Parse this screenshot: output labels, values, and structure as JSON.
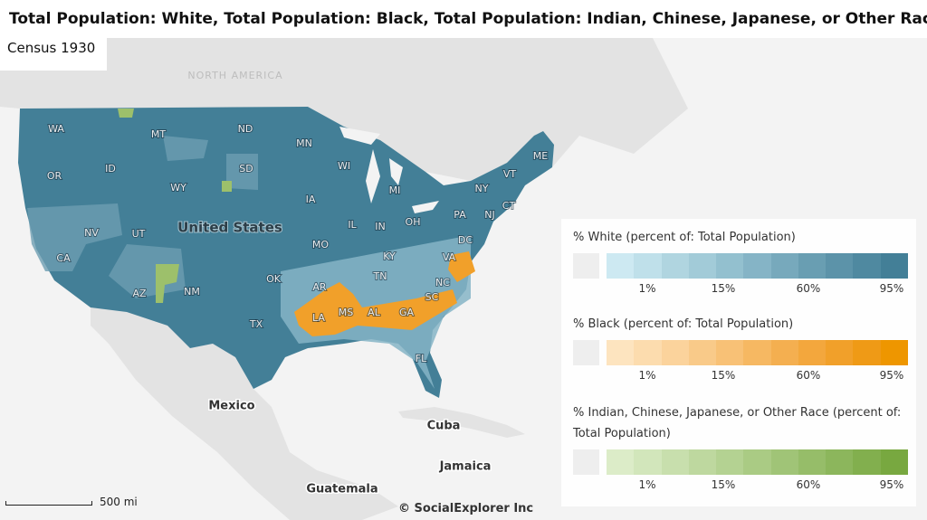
{
  "header": {
    "title": "Total Population: White, Total Population: Black, Total Population: Indian, Chinese, Japanese, or Other Race",
    "subtitle": "Census 1930"
  },
  "map": {
    "region_labels": [
      "NORTH AMERICA",
      "United States",
      "Mexico",
      "Cuba",
      "Jamaica",
      "Guatemala"
    ],
    "state_labels": [
      "WA",
      "MT",
      "ND",
      "MN",
      "OR",
      "ID",
      "SD",
      "WI",
      "MI",
      "WY",
      "IA",
      "NV",
      "UT",
      "IL",
      "IN",
      "OH",
      "PA",
      "NY",
      "VT",
      "ME",
      "NJ",
      "CT",
      "DC",
      "MO",
      "KY",
      "VA",
      "CA",
      "AZ",
      "NM",
      "OK",
      "AR",
      "TN",
      "NC",
      "SC",
      "MS",
      "AL",
      "GA",
      "LA",
      "TX",
      "FL"
    ]
  },
  "legends": [
    {
      "title": "% White (percent of: Total Population)",
      "no_data_color": "#eeeeee",
      "colors": [
        "#cde9f2",
        "#bfe0ea",
        "#b0d5e0",
        "#a2cbd8",
        "#93c0cf",
        "#85b4c6",
        "#77a9bc",
        "#699eb2",
        "#5c93a9",
        "#4f89a0",
        "#437f97"
      ],
      "tick_labels": [
        "1%",
        "15%",
        "60%",
        "95%"
      ]
    },
    {
      "title": "% Black (percent of: Total Population)",
      "no_data_color": "#eeeeee",
      "colors": [
        "#fde4bf",
        "#fcdcae",
        "#fbd39c",
        "#f9ca89",
        "#f8c176",
        "#f6b862",
        "#f4af50",
        "#f3a73d",
        "#f1a02a",
        "#ef9a16",
        "#ee9600"
      ],
      "tick_labels": [
        "1%",
        "15%",
        "60%",
        "95%"
      ]
    },
    {
      "title": "% Indian, Chinese, Japanese, or Other Race (percent of: Total Population)",
      "no_data_color": "#eeeeee",
      "colors": [
        "#dcecc8",
        "#d2e6bb",
        "#c8dfad",
        "#bed89f",
        "#b4d292",
        "#aacb84",
        "#a0c477",
        "#96bd69",
        "#8cb65c",
        "#82af4e",
        "#78a840"
      ],
      "tick_labels": [
        "1%",
        "15%",
        "60%",
        "95%"
      ]
    }
  ],
  "scale_bar": {
    "label": "500 mi"
  },
  "credit": "© SocialExplorer Inc"
}
